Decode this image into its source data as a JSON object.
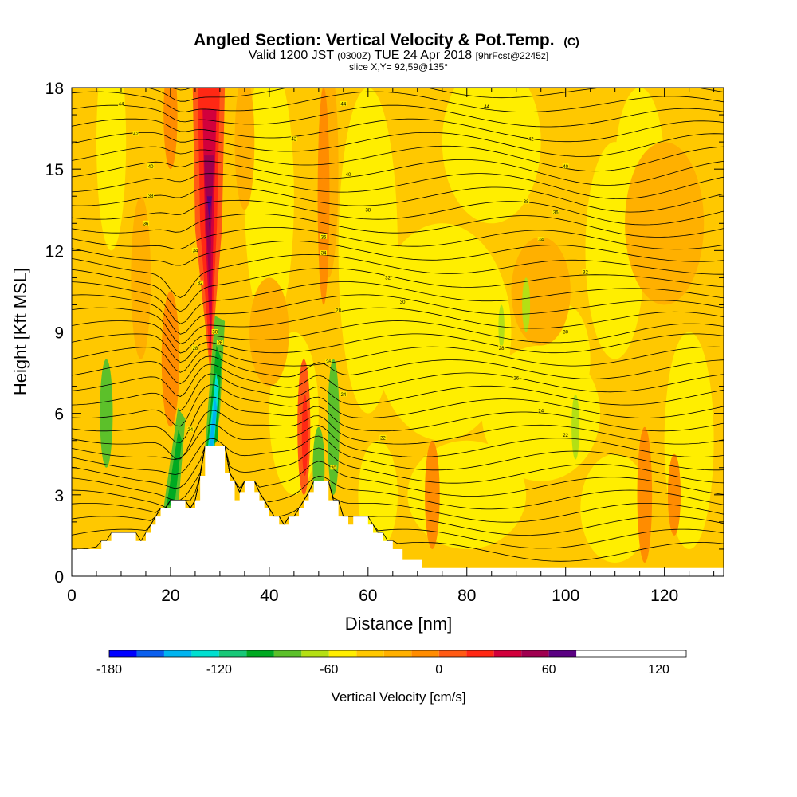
{
  "chart_data": {
    "type": "heatmap",
    "title": "Angled Section: Vertical Velocity & Pot.Temp.",
    "title_tag": "(C)",
    "subtitle": {
      "prefix": "Valid 1200 JST",
      "utc": "(0300Z)",
      "date": "TUE 24 Apr 2018",
      "forecast": "[9hrFcst@2245z]"
    },
    "slice_label": "slice X,Y= 92,59@135°",
    "xlabel": "Distance [nm]",
    "ylabel": "Height [Kft MSL]",
    "xlim": [
      0,
      132
    ],
    "ylim": [
      0,
      18
    ],
    "x_ticks": [
      0,
      20,
      40,
      60,
      80,
      100,
      120
    ],
    "y_ticks": [
      0,
      3,
      6,
      9,
      12,
      15,
      18
    ],
    "colorbar": {
      "label": "Vertical Velocity [cm/s]",
      "levels": [
        -180,
        -165,
        -150,
        -135,
        -120,
        -105,
        -90,
        -75,
        -60,
        -45,
        -30,
        -15,
        0,
        15,
        30,
        45,
        60,
        75,
        90,
        105,
        120,
        135
      ],
      "colors": [
        "#0000ff",
        "#0a5fee",
        "#00b4f0",
        "#00e0d0",
        "#18c878",
        "#00aa22",
        "#5cc02a",
        "#b4e014",
        "#ffee00",
        "#ffc800",
        "#ffb000",
        "#ff8c00",
        "#ff5a14",
        "#ff2814",
        "#d2003c",
        "#a00050",
        "#5a0082"
      ],
      "tick_labels": [
        "-180",
        "-120",
        "-60",
        "0",
        "60",
        "120"
      ],
      "tick_values": [
        -180,
        -120,
        -60,
        0,
        60,
        120
      ]
    },
    "contour_labels": [
      {
        "text": "44",
        "x": 10,
        "y": 17.4
      },
      {
        "text": "44",
        "x": 55,
        "y": 17.4
      },
      {
        "text": "44",
        "x": 84,
        "y": 17.3
      },
      {
        "text": "42",
        "x": 13,
        "y": 16.3
      },
      {
        "text": "42",
        "x": 45,
        "y": 16.1
      },
      {
        "text": "42",
        "x": 93,
        "y": 16.1
      },
      {
        "text": "40",
        "x": 16,
        "y": 15.1
      },
      {
        "text": "40",
        "x": 56,
        "y": 14.8
      },
      {
        "text": "40",
        "x": 100,
        "y": 15.1
      },
      {
        "text": "38",
        "x": 16,
        "y": 14.0
      },
      {
        "text": "38",
        "x": 60,
        "y": 13.5
      },
      {
        "text": "38",
        "x": 92,
        "y": 13.8
      },
      {
        "text": "36",
        "x": 15,
        "y": 13.0
      },
      {
        "text": "36",
        "x": 51,
        "y": 12.5
      },
      {
        "text": "36",
        "x": 98,
        "y": 13.4
      },
      {
        "text": "34",
        "x": 25,
        "y": 12.0
      },
      {
        "text": "34",
        "x": 51,
        "y": 11.9
      },
      {
        "text": "34",
        "x": 95,
        "y": 12.4
      },
      {
        "text": "32",
        "x": 26,
        "y": 10.8
      },
      {
        "text": "32",
        "x": 64,
        "y": 11.0
      },
      {
        "text": "32",
        "x": 104,
        "y": 11.2
      },
      {
        "text": "30",
        "x": 67,
        "y": 10.1
      },
      {
        "text": "30",
        "x": 29,
        "y": 9.0
      },
      {
        "text": "30",
        "x": 100,
        "y": 9.0
      },
      {
        "text": "28",
        "x": 54,
        "y": 9.8
      },
      {
        "text": "28",
        "x": 87,
        "y": 8.4
      },
      {
        "text": "28",
        "x": 25,
        "y": 8.4
      },
      {
        "text": "26",
        "x": 30,
        "y": 8.6
      },
      {
        "text": "26",
        "x": 52,
        "y": 7.9
      },
      {
        "text": "26",
        "x": 90,
        "y": 7.3
      },
      {
        "text": "24",
        "x": 55,
        "y": 6.7
      },
      {
        "text": "24",
        "x": 95,
        "y": 6.1
      },
      {
        "text": "24",
        "x": 24,
        "y": 5.4
      },
      {
        "text": "22",
        "x": 63,
        "y": 5.1
      },
      {
        "text": "22",
        "x": 100,
        "y": 5.2
      },
      {
        "text": "20",
        "x": 53,
        "y": 4.0
      }
    ]
  }
}
